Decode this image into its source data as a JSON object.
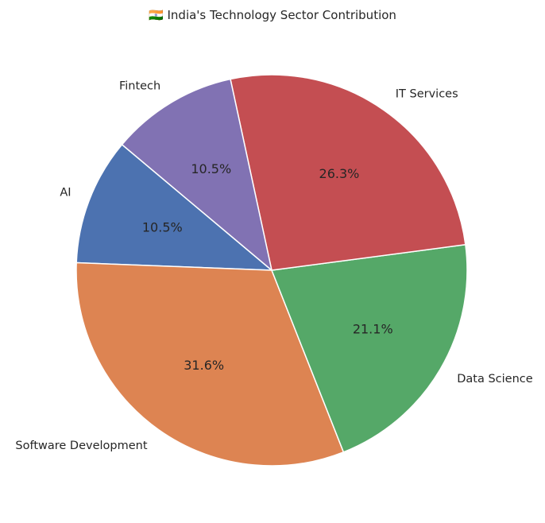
{
  "chart_data": {
    "type": "pie",
    "title": "🇮🇳 India's Technology Sector Contribution",
    "categories": [
      "AI",
      "Software Development",
      "Data Science",
      "IT Services",
      "Fintech"
    ],
    "values": [
      10.5,
      31.6,
      21.1,
      26.3,
      10.5
    ],
    "percent_labels": [
      "10.5%",
      "31.6%",
      "21.1%",
      "26.3%",
      "10.5%"
    ],
    "colors": [
      "#4c72b0",
      "#dd8452",
      "#55a868",
      "#c44e52",
      "#8172b3"
    ],
    "start_angle_deg": 140,
    "direction": "counterclockwise"
  }
}
